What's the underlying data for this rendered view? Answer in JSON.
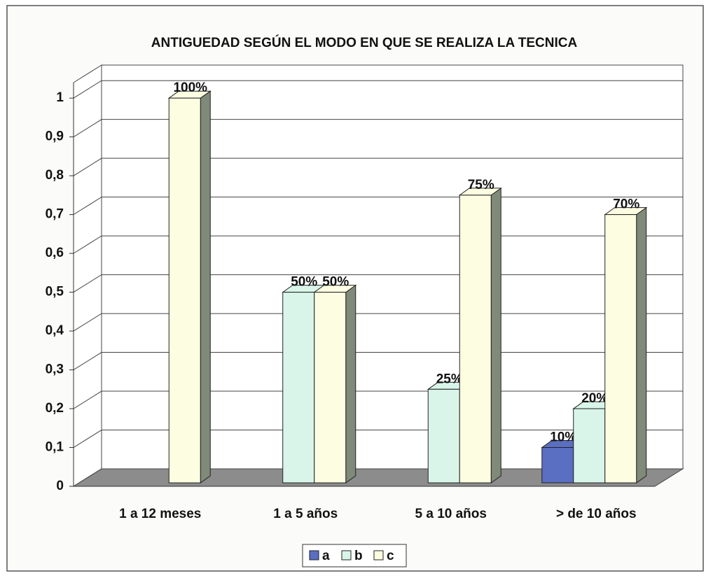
{
  "chart_data": {
    "type": "bar3d",
    "title": "ANTIGUEDAD SEGÚN EL MODO EN QUE SE REALIZA LA TECNICA",
    "categories": [
      "1 a 12 meses",
      "1 a 5 años",
      "5 a 10 años",
      "> de 10 años"
    ],
    "series": [
      {
        "name": "a",
        "color": "#5a6ec2",
        "values": [
          null,
          null,
          null,
          0.1
        ],
        "value_labels": [
          null,
          null,
          null,
          "10%"
        ]
      },
      {
        "name": "b",
        "color": "#d9f5e9",
        "values": [
          null,
          0.5,
          0.25,
          0.2
        ],
        "value_labels": [
          null,
          "50%",
          "25%",
          "20%"
        ]
      },
      {
        "name": "c",
        "color": "#fdfde2",
        "values": [
          1,
          0.5,
          0.75,
          0.7
        ],
        "value_labels": [
          "100%",
          "50%",
          "75%",
          "70%"
        ]
      }
    ],
    "ylim": [
      0,
      1.04
    ],
    "yticks": [
      0,
      {
        "value": 0.1,
        "label": "0,1"
      },
      {
        "value": 0.2,
        "label": "0,2"
      },
      {
        "value": 0.3,
        "label": "0,3"
      },
      {
        "value": 0.4,
        "label": "0,4"
      },
      {
        "value": 0.5,
        "label": "0,5"
      },
      {
        "value": 0.6,
        "label": "0,6"
      },
      {
        "value": 0.7,
        "label": "0,7"
      },
      {
        "value": 0.8,
        "label": "0,8"
      },
      {
        "value": 0.9,
        "label": "0,9"
      },
      1
    ],
    "grid": true,
    "legend": "bottom"
  }
}
